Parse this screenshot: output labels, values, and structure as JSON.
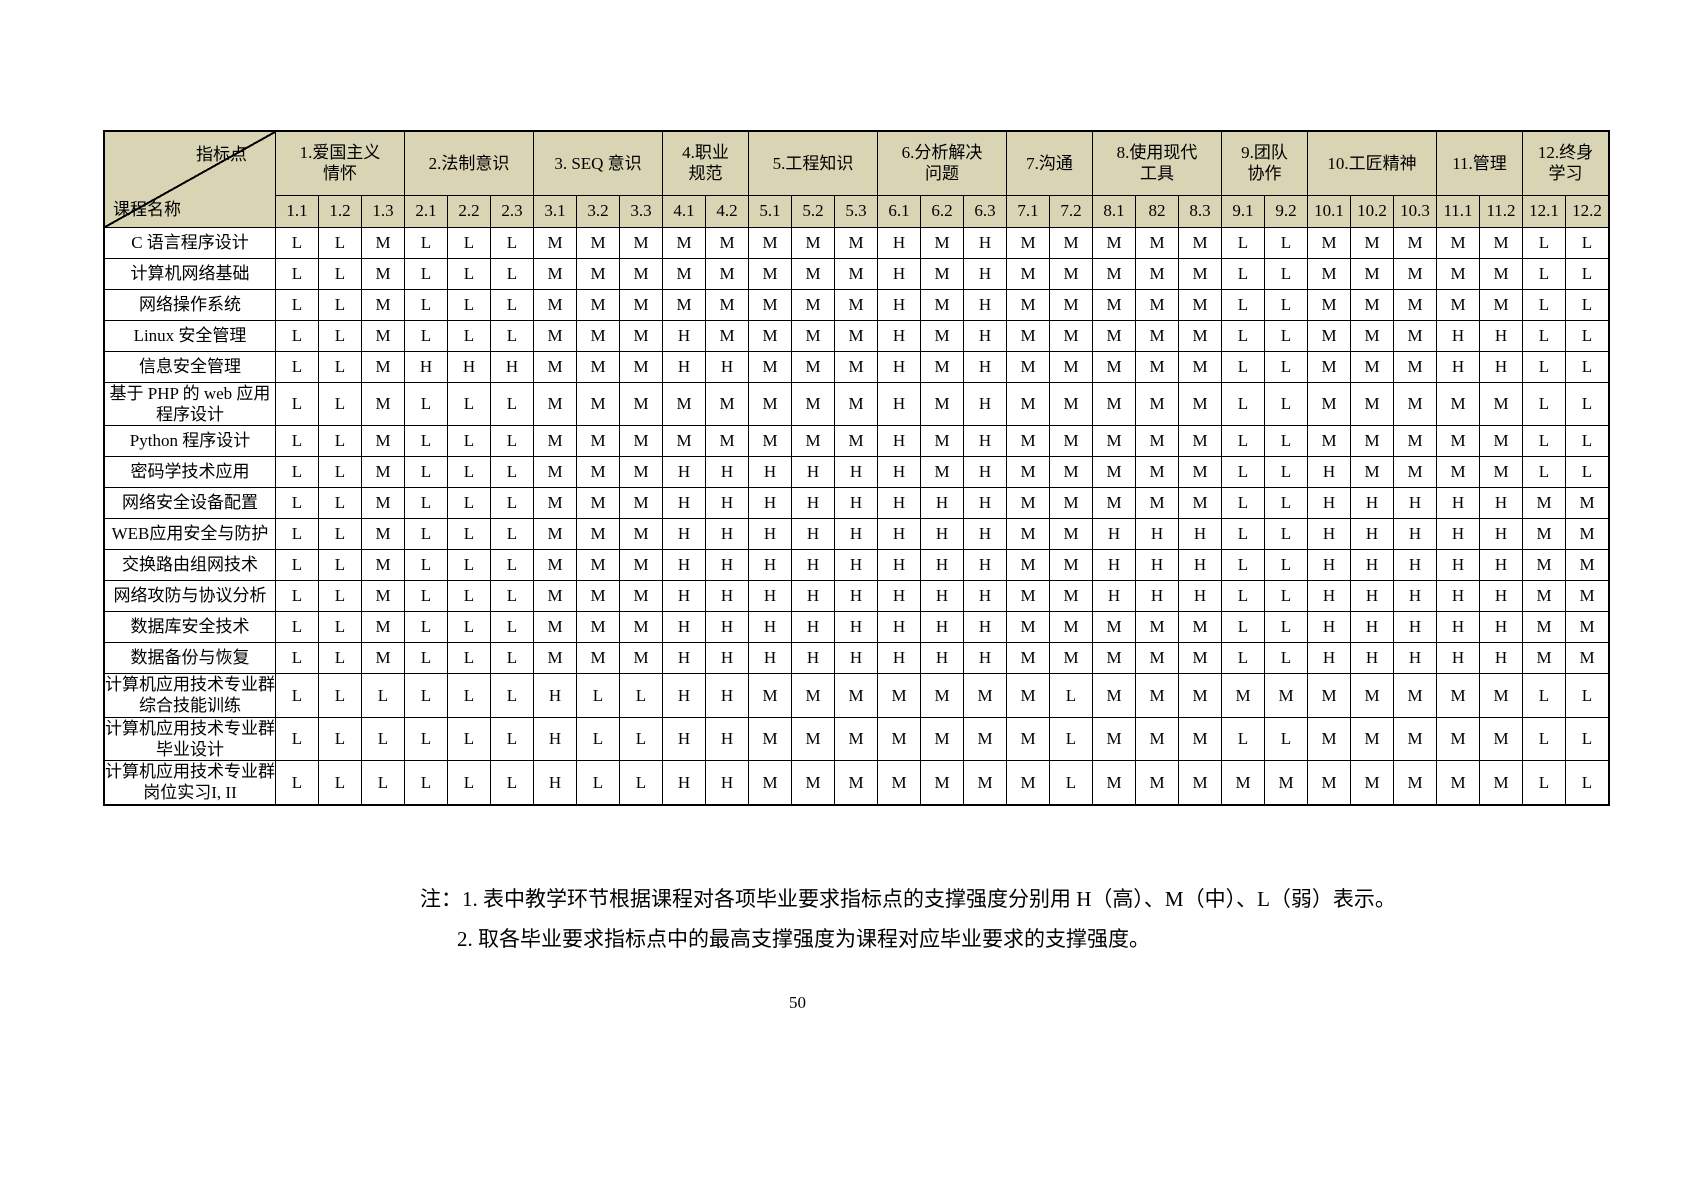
{
  "page": {
    "number": "50"
  },
  "colors": {
    "header_bg": "#d8d4b4"
  },
  "table": {
    "corner": {
      "top_right": "指标点",
      "bottom_left": "课程名称"
    },
    "groups": [
      {
        "label": "1.爱国主义\n情怀",
        "cols": [
          "1.1",
          "1.2",
          "1.3"
        ]
      },
      {
        "label": "2.法制意识",
        "cols": [
          "2.1",
          "2.2",
          "2.3"
        ]
      },
      {
        "label": "3. SEQ 意识",
        "cols": [
          "3.1",
          "3.2",
          "3.3"
        ]
      },
      {
        "label": "4.职业\n规范",
        "cols": [
          "4.1",
          "4.2"
        ]
      },
      {
        "label": "5.工程知识",
        "cols": [
          "5.1",
          "5.2",
          "5.3"
        ]
      },
      {
        "label": "6.分析解决\n问题",
        "cols": [
          "6.1",
          "6.2",
          "6.3"
        ]
      },
      {
        "label": "7.沟通",
        "cols": [
          "7.1",
          "7.2"
        ]
      },
      {
        "label": "8.使用现代\n工具",
        "cols": [
          "8.1",
          "82",
          "8.3"
        ]
      },
      {
        "label": "9.团队\n协作",
        "cols": [
          "9.1",
          "9.2"
        ]
      },
      {
        "label": "10.工匠精神",
        "cols": [
          "10.1",
          "10.2",
          "10.3"
        ]
      },
      {
        "label": "11.管理",
        "cols": [
          "11.1",
          "11.2"
        ]
      },
      {
        "label": "12.终身\n学习",
        "cols": [
          "12.1",
          "12.2"
        ]
      }
    ],
    "rows": [
      {
        "course": "C 语言程序设计",
        "values": [
          "L",
          "L",
          "M",
          "L",
          "L",
          "L",
          "M",
          "M",
          "M",
          "M",
          "M",
          "M",
          "M",
          "M",
          "H",
          "M",
          "H",
          "M",
          "M",
          "M",
          "M",
          "M",
          "L",
          "L",
          "M",
          "M",
          "M",
          "M",
          "M",
          "L",
          "L"
        ]
      },
      {
        "course": "计算机网络基础",
        "values": [
          "L",
          "L",
          "M",
          "L",
          "L",
          "L",
          "M",
          "M",
          "M",
          "M",
          "M",
          "M",
          "M",
          "M",
          "H",
          "M",
          "H",
          "M",
          "M",
          "M",
          "M",
          "M",
          "L",
          "L",
          "M",
          "M",
          "M",
          "M",
          "M",
          "L",
          "L"
        ]
      },
      {
        "course": "网络操作系统",
        "values": [
          "L",
          "L",
          "M",
          "L",
          "L",
          "L",
          "M",
          "M",
          "M",
          "M",
          "M",
          "M",
          "M",
          "M",
          "H",
          "M",
          "H",
          "M",
          "M",
          "M",
          "M",
          "M",
          "L",
          "L",
          "M",
          "M",
          "M",
          "M",
          "M",
          "L",
          "L"
        ]
      },
      {
        "course": "Linux 安全管理",
        "values": [
          "L",
          "L",
          "M",
          "L",
          "L",
          "L",
          "M",
          "M",
          "M",
          "H",
          "M",
          "M",
          "M",
          "M",
          "H",
          "M",
          "H",
          "M",
          "M",
          "M",
          "M",
          "M",
          "L",
          "L",
          "M",
          "M",
          "M",
          "H",
          "H",
          "L",
          "L"
        ]
      },
      {
        "course": "信息安全管理",
        "values": [
          "L",
          "L",
          "M",
          "H",
          "H",
          "H",
          "M",
          "M",
          "M",
          "H",
          "H",
          "M",
          "M",
          "M",
          "H",
          "M",
          "H",
          "M",
          "M",
          "M",
          "M",
          "M",
          "L",
          "L",
          "M",
          "M",
          "M",
          "H",
          "H",
          "L",
          "L"
        ]
      },
      {
        "course": "基于 PHP 的 web 应用程序设计",
        "values": [
          "L",
          "L",
          "M",
          "L",
          "L",
          "L",
          "M",
          "M",
          "M",
          "M",
          "M",
          "M",
          "M",
          "M",
          "H",
          "M",
          "H",
          "M",
          "M",
          "M",
          "M",
          "M",
          "L",
          "L",
          "M",
          "M",
          "M",
          "M",
          "M",
          "L",
          "L"
        ]
      },
      {
        "course": "Python 程序设计",
        "values": [
          "L",
          "L",
          "M",
          "L",
          "L",
          "L",
          "M",
          "M",
          "M",
          "M",
          "M",
          "M",
          "M",
          "M",
          "H",
          "M",
          "H",
          "M",
          "M",
          "M",
          "M",
          "M",
          "L",
          "L",
          "M",
          "M",
          "M",
          "M",
          "M",
          "L",
          "L"
        ]
      },
      {
        "course": "密码学技术应用",
        "values": [
          "L",
          "L",
          "M",
          "L",
          "L",
          "L",
          "M",
          "M",
          "M",
          "H",
          "H",
          "H",
          "H",
          "H",
          "H",
          "M",
          "H",
          "M",
          "M",
          "M",
          "M",
          "M",
          "L",
          "L",
          "H",
          "M",
          "M",
          "M",
          "M",
          "L",
          "L"
        ]
      },
      {
        "course": "网络安全设备配置",
        "values": [
          "L",
          "L",
          "M",
          "L",
          "L",
          "L",
          "M",
          "M",
          "M",
          "H",
          "H",
          "H",
          "H",
          "H",
          "H",
          "H",
          "H",
          "M",
          "M",
          "M",
          "M",
          "M",
          "L",
          "L",
          "H",
          "H",
          "H",
          "H",
          "H",
          "M",
          "M"
        ]
      },
      {
        "course": "WEB应用安全与防护",
        "values": [
          "L",
          "L",
          "M",
          "L",
          "L",
          "L",
          "M",
          "M",
          "M",
          "H",
          "H",
          "H",
          "H",
          "H",
          "H",
          "H",
          "H",
          "M",
          "M",
          "H",
          "H",
          "H",
          "L",
          "L",
          "H",
          "H",
          "H",
          "H",
          "H",
          "M",
          "M"
        ]
      },
      {
        "course": "交换路由组网技术",
        "values": [
          "L",
          "L",
          "M",
          "L",
          "L",
          "L",
          "M",
          "M",
          "M",
          "H",
          "H",
          "H",
          "H",
          "H",
          "H",
          "H",
          "H",
          "M",
          "M",
          "H",
          "H",
          "H",
          "L",
          "L",
          "H",
          "H",
          "H",
          "H",
          "H",
          "M",
          "M"
        ]
      },
      {
        "course": "网络攻防与协议分析",
        "values": [
          "L",
          "L",
          "M",
          "L",
          "L",
          "L",
          "M",
          "M",
          "M",
          "H",
          "H",
          "H",
          "H",
          "H",
          "H",
          "H",
          "H",
          "M",
          "M",
          "H",
          "H",
          "H",
          "L",
          "L",
          "H",
          "H",
          "H",
          "H",
          "H",
          "M",
          "M"
        ]
      },
      {
        "course": "数据库安全技术",
        "values": [
          "L",
          "L",
          "M",
          "L",
          "L",
          "L",
          "M",
          "M",
          "M",
          "H",
          "H",
          "H",
          "H",
          "H",
          "H",
          "H",
          "H",
          "M",
          "M",
          "M",
          "M",
          "M",
          "L",
          "L",
          "H",
          "H",
          "H",
          "H",
          "H",
          "M",
          "M"
        ]
      },
      {
        "course": "数据备份与恢复",
        "values": [
          "L",
          "L",
          "M",
          "L",
          "L",
          "L",
          "M",
          "M",
          "M",
          "H",
          "H",
          "H",
          "H",
          "H",
          "H",
          "H",
          "H",
          "M",
          "M",
          "M",
          "M",
          "M",
          "L",
          "L",
          "H",
          "H",
          "H",
          "H",
          "H",
          "M",
          "M"
        ]
      },
      {
        "course": "计算机应用技术专业群综合技能训练",
        "values": [
          "L",
          "L",
          "L",
          "L",
          "L",
          "L",
          "H",
          "L",
          "L",
          "H",
          "H",
          "M",
          "M",
          "M",
          "M",
          "M",
          "M",
          "M",
          "L",
          "M",
          "M",
          "M",
          "M",
          "M",
          "M",
          "M",
          "M",
          "M",
          "M",
          "L",
          "L"
        ]
      },
      {
        "course": "计算机应用技术专业群毕业设计",
        "values": [
          "L",
          "L",
          "L",
          "L",
          "L",
          "L",
          "H",
          "L",
          "L",
          "H",
          "H",
          "M",
          "M",
          "M",
          "M",
          "M",
          "M",
          "M",
          "L",
          "M",
          "M",
          "M",
          "L",
          "L",
          "M",
          "M",
          "M",
          "M",
          "M",
          "L",
          "L"
        ]
      },
      {
        "course": "计算机应用技术专业群岗位实习I, II",
        "values": [
          "L",
          "L",
          "L",
          "L",
          "L",
          "L",
          "H",
          "L",
          "L",
          "H",
          "H",
          "M",
          "M",
          "M",
          "M",
          "M",
          "M",
          "M",
          "L",
          "M",
          "M",
          "M",
          "M",
          "M",
          "M",
          "M",
          "M",
          "M",
          "M",
          "L",
          "L"
        ]
      }
    ]
  },
  "notes": [
    "注：1. 表中教学环节根据课程对各项毕业要求指标点的支撑强度分别用 H（高）、M（中）、L（弱）表示。",
    "2. 取各毕业要求指标点中的最高支撑强度为课程对应毕业要求的支撑强度。"
  ]
}
